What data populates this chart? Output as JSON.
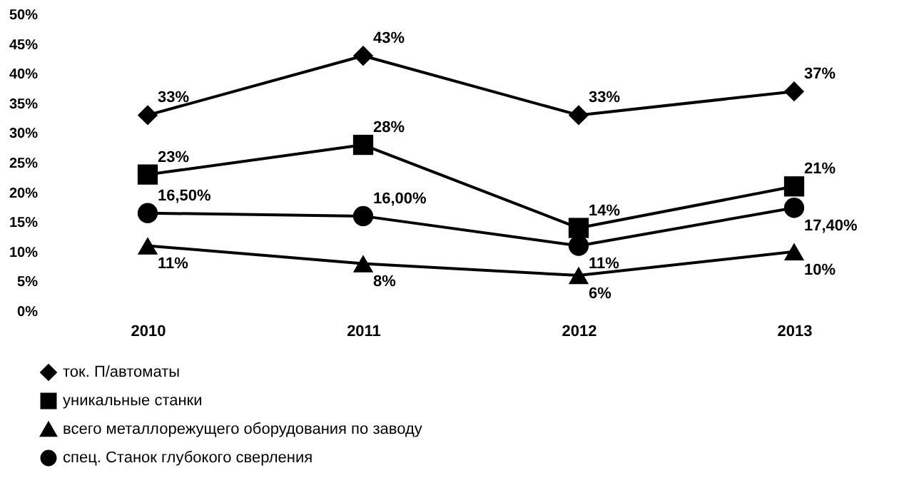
{
  "chart_data": {
    "type": "line",
    "categories": [
      "2010",
      "2011",
      "2012",
      "2013"
    ],
    "series": [
      {
        "name": "ток. П/автоматы",
        "color": "#000000",
        "marker": "diamond",
        "values": [
          33,
          43,
          33,
          37
        ],
        "value_labels": [
          "33%",
          "43%",
          "33%",
          "37%"
        ]
      },
      {
        "name": "уникальные станки",
        "color": "#000000",
        "marker": "square",
        "values": [
          23,
          28,
          14,
          21
        ],
        "value_labels": [
          "23%",
          "28%",
          "14%",
          "21%"
        ]
      },
      {
        "name": "всего металлорежущего оборудования по заводу",
        "color": "#000000",
        "marker": "triangle",
        "values": [
          11,
          8,
          6,
          10
        ],
        "value_labels": [
          "11%",
          "8%",
          "6%",
          "10%"
        ]
      },
      {
        "name": "спец. Станок глубокого сверления",
        "color": "#000000",
        "marker": "circle",
        "values": [
          16.5,
          16.0,
          11,
          17.4
        ],
        "value_labels": [
          "16,50%",
          "16,00%",
          "11%",
          "17,40%"
        ]
      }
    ],
    "ylim": [
      0,
      50
    ],
    "yticks": [
      {
        "value": 0,
        "label": "0%"
      },
      {
        "value": 5,
        "label": "5%"
      },
      {
        "value": 10,
        "label": "10%"
      },
      {
        "value": 15,
        "label": "15%"
      },
      {
        "value": 20,
        "label": "20%"
      },
      {
        "value": 25,
        "label": "25%"
      },
      {
        "value": 30,
        "label": "30%"
      },
      {
        "value": 35,
        "label": "35%"
      },
      {
        "value": 40,
        "label": "40%"
      },
      {
        "value": 45,
        "label": "45%"
      },
      {
        "value": 50,
        "label": "50%"
      }
    ],
    "grid": false,
    "legend": "bottom",
    "line_style": "solid"
  }
}
